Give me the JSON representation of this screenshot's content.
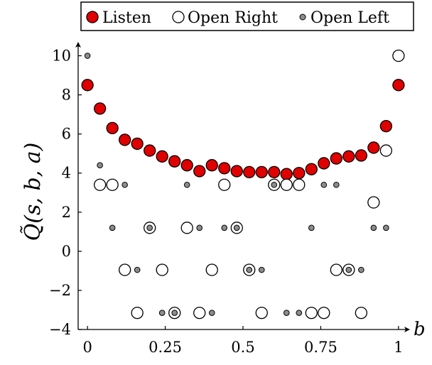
{
  "chart_data": {
    "type": "scatter",
    "xlabel": "b",
    "ylabel": "Q̃(s, b, a)",
    "xlim": [
      -0.03,
      1.03
    ],
    "ylim": [
      -4,
      10.6
    ],
    "x_ticks": [
      0,
      0.25,
      0.5,
      0.75,
      1
    ],
    "x_tick_labels": [
      "0",
      "0.25",
      "0.5",
      "0.75",
      "1"
    ],
    "y_ticks": [
      -4,
      -2,
      0,
      2,
      4,
      6,
      8,
      10
    ],
    "y_tick_labels": [
      "−4",
      "−2",
      "0",
      "2",
      "4",
      "6",
      "8",
      "10"
    ],
    "grid": false,
    "legend_position": "top",
    "series": [
      {
        "name": "Listen",
        "marker": "large-filled-circle",
        "color": "#e00000",
        "points": [
          [
            0.0,
            8.5
          ],
          [
            0.04,
            7.3
          ],
          [
            0.08,
            6.3
          ],
          [
            0.12,
            5.7
          ],
          [
            0.16,
            5.5
          ],
          [
            0.2,
            5.15
          ],
          [
            0.24,
            4.85
          ],
          [
            0.28,
            4.6
          ],
          [
            0.32,
            4.4
          ],
          [
            0.36,
            4.1
          ],
          [
            0.4,
            4.4
          ],
          [
            0.44,
            4.25
          ],
          [
            0.48,
            4.1
          ],
          [
            0.52,
            4.05
          ],
          [
            0.56,
            4.05
          ],
          [
            0.6,
            4.05
          ],
          [
            0.64,
            3.95
          ],
          [
            0.68,
            4.0
          ],
          [
            0.72,
            4.2
          ],
          [
            0.76,
            4.5
          ],
          [
            0.8,
            4.75
          ],
          [
            0.84,
            4.85
          ],
          [
            0.88,
            4.9
          ],
          [
            0.92,
            5.3
          ],
          [
            0.96,
            6.4
          ],
          [
            1.0,
            8.5
          ]
        ]
      },
      {
        "name": "Open Right",
        "marker": "large-open-circle",
        "color": "#ffffff",
        "points": [
          [
            0.04,
            3.4
          ],
          [
            0.08,
            3.4
          ],
          [
            0.12,
            -0.95
          ],
          [
            0.16,
            -3.15
          ],
          [
            0.2,
            1.2
          ],
          [
            0.24,
            -0.95
          ],
          [
            0.28,
            -3.15
          ],
          [
            0.32,
            1.2
          ],
          [
            0.36,
            -3.15
          ],
          [
            0.4,
            -0.95
          ],
          [
            0.44,
            3.4
          ],
          [
            0.48,
            1.2
          ],
          [
            0.52,
            -0.95
          ],
          [
            0.56,
            -3.15
          ],
          [
            0.6,
            3.4
          ],
          [
            0.64,
            3.4
          ],
          [
            0.68,
            3.4
          ],
          [
            0.72,
            -3.15
          ],
          [
            0.76,
            -3.15
          ],
          [
            0.8,
            -0.95
          ],
          [
            0.84,
            -0.95
          ],
          [
            0.88,
            -3.15
          ],
          [
            0.92,
            2.5
          ],
          [
            0.96,
            5.15
          ],
          [
            1.0,
            10.0
          ]
        ]
      },
      {
        "name": "Open Left",
        "marker": "small-filled-circle",
        "color": "#8c8c8c",
        "points": [
          [
            0.0,
            10.0
          ],
          [
            0.04,
            4.4
          ],
          [
            0.08,
            1.2
          ],
          [
            0.12,
            3.4
          ],
          [
            0.16,
            -0.95
          ],
          [
            0.2,
            1.2
          ],
          [
            0.24,
            -3.15
          ],
          [
            0.28,
            -3.15
          ],
          [
            0.32,
            3.4
          ],
          [
            0.36,
            1.2
          ],
          [
            0.4,
            -3.15
          ],
          [
            0.44,
            1.2
          ],
          [
            0.48,
            1.2
          ],
          [
            0.52,
            -0.95
          ],
          [
            0.56,
            -0.95
          ],
          [
            0.6,
            3.4
          ],
          [
            0.64,
            -3.15
          ],
          [
            0.68,
            -3.15
          ],
          [
            0.72,
            1.2
          ],
          [
            0.76,
            3.4
          ],
          [
            0.8,
            3.4
          ],
          [
            0.84,
            -0.95
          ],
          [
            0.88,
            -0.95
          ],
          [
            0.92,
            1.2
          ],
          [
            0.96,
            1.2
          ]
        ]
      }
    ]
  }
}
